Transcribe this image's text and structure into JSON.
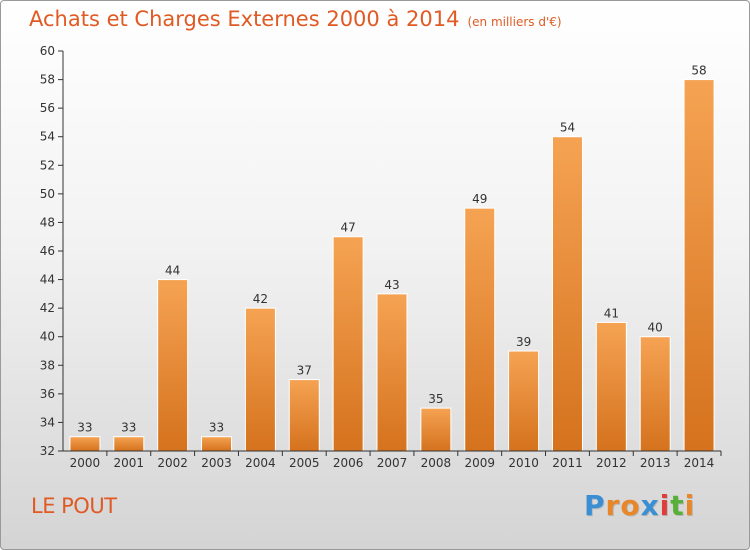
{
  "title": "Achats et Charges Externes 2000 à 2014",
  "subtitle": "(en milliers d'€)",
  "commune": "LE POUT",
  "logo": {
    "letters": [
      "P",
      "r",
      "o",
      "x",
      "i",
      "t",
      "i"
    ],
    "colors": [
      "#3a8fd4",
      "#e8862a",
      "#e8862a",
      "#3a8fd4",
      "#e03c3c",
      "#58b038",
      "#e8862a"
    ]
  },
  "colors": {
    "accent": "#e05a24",
    "bar_top": "#f5a353",
    "bar_bottom": "#d5721d"
  },
  "chart_data": {
    "type": "bar",
    "categories": [
      "2000",
      "2001",
      "2002",
      "2003",
      "2004",
      "2005",
      "2006",
      "2007",
      "2008",
      "2009",
      "2010",
      "2011",
      "2012",
      "2013",
      "2014"
    ],
    "values": [
      33,
      33,
      44,
      33,
      42,
      37,
      47,
      43,
      35,
      49,
      39,
      54,
      41,
      40,
      58
    ],
    "ylim": [
      32,
      60
    ],
    "yticks": [
      32,
      34,
      36,
      38,
      40,
      42,
      44,
      46,
      48,
      50,
      52,
      54,
      56,
      58,
      60
    ],
    "grid": false,
    "legend": "none"
  }
}
